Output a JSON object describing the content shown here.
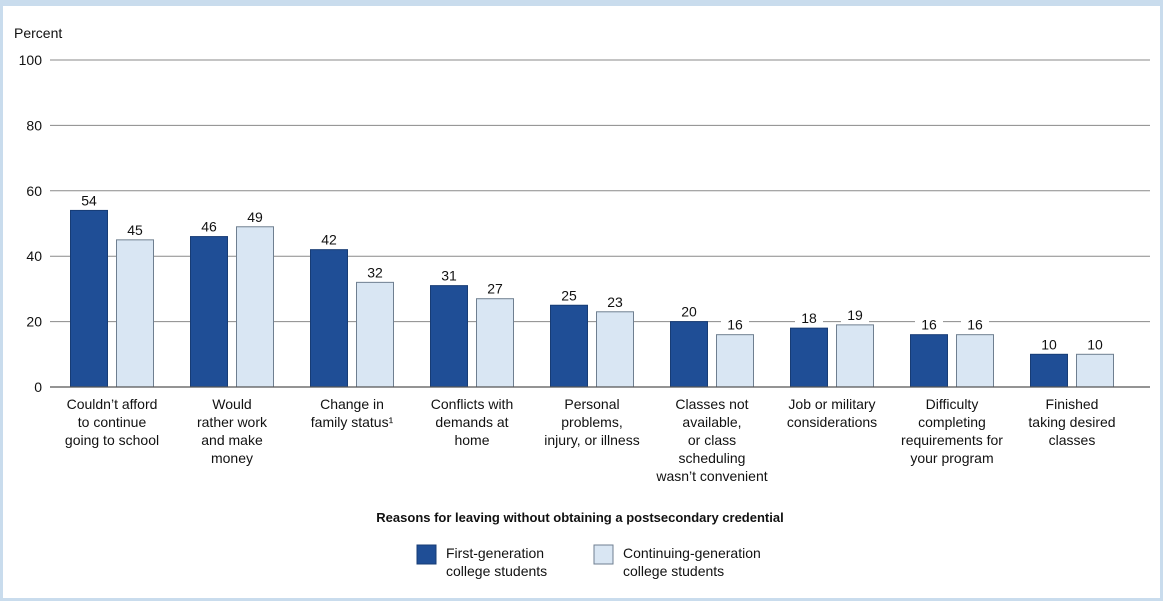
{
  "chart_data": {
    "type": "bar",
    "ylabel": "Percent",
    "xlabel": "Reasons for leaving without obtaining a postsecondary credential",
    "ylim": [
      0,
      100
    ],
    "yticks": [
      0,
      20,
      40,
      60,
      80,
      100
    ],
    "grid": true,
    "legend_position": "bottom-center",
    "categories": [
      "Couldn’t afford to continue going to school",
      "Would rather work and make money",
      "Change in family status¹",
      "Conflicts with demands at home",
      "Personal problems, injury, or illness",
      "Classes not available, or class scheduling wasn’t convenient",
      "Job or military considerations",
      "Difficulty completing requirements for your program",
      "Finished taking desired classes"
    ],
    "category_label_lines": [
      [
        "Couldn’t afford",
        "to continue",
        "going to school"
      ],
      [
        "Would",
        "rather work",
        "and make",
        "money"
      ],
      [
        "Change in",
        "family status¹"
      ],
      [
        "Conflicts with",
        "demands at",
        "home"
      ],
      [
        "Personal",
        "problems,",
        "injury, or illness"
      ],
      [
        "Classes not",
        "available,",
        "or class",
        "scheduling",
        "wasn’t convenient"
      ],
      [
        "Job or military",
        "considerations"
      ],
      [
        "Difficulty",
        "completing",
        "requirements for",
        "your program"
      ],
      [
        "Finished",
        "taking desired",
        "classes"
      ]
    ],
    "series": [
      {
        "name": "First-generation college students",
        "legend_lines": [
          "First-generation",
          "college students"
        ],
        "color": "#1f4e96",
        "values": [
          54,
          46,
          42,
          31,
          25,
          20,
          18,
          16,
          10
        ]
      },
      {
        "name": "Continuing-generation college students",
        "legend_lines": [
          "Continuing-generation",
          "college students"
        ],
        "color": "#d9e6f3",
        "values": [
          45,
          49,
          32,
          27,
          23,
          16,
          19,
          16,
          10
        ]
      }
    ]
  }
}
